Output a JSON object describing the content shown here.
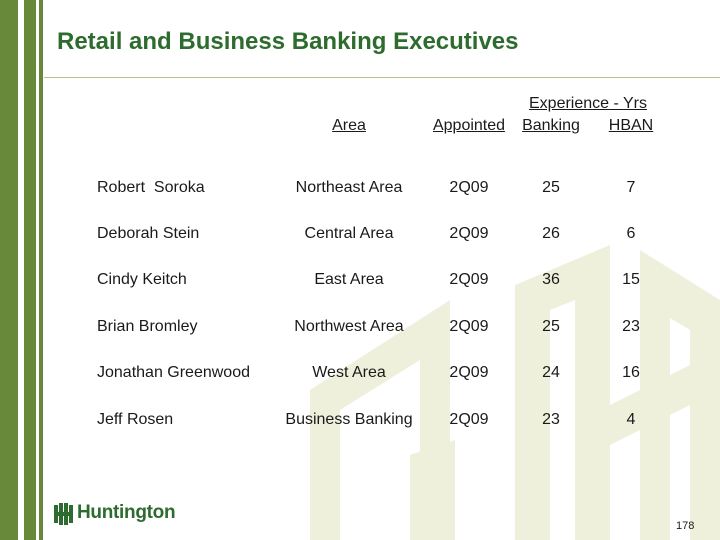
{
  "slide": {
    "title": "Retail and Business Banking Executives",
    "page_number": "178",
    "logo_text": "Huntington"
  },
  "table": {
    "group_header": "Experience - Yrs",
    "headers": {
      "area": "Area",
      "appointed": "Appointed",
      "banking": "Banking",
      "hban": "HBAN"
    },
    "rows": [
      {
        "name": "Robert  Soroka",
        "area": "Northeast Area",
        "appointed": "2Q09",
        "banking": "25",
        "hban": "7"
      },
      {
        "name": "Deborah Stein",
        "area": "Central Area",
        "appointed": "2Q09",
        "banking": "26",
        "hban": "6"
      },
      {
        "name": "Cindy Keitch",
        "area": "East Area",
        "appointed": "2Q09",
        "banking": "36",
        "hban": "15"
      },
      {
        "name": "Brian Bromley",
        "area": "Northwest Area",
        "appointed": "2Q09",
        "banking": "25",
        "hban": "23"
      },
      {
        "name": "Jonathan Greenwood",
        "area": "West Area",
        "appointed": "2Q09",
        "banking": "24",
        "hban": "16"
      },
      {
        "name": "Jeff Rosen",
        "area": "Business Banking",
        "appointed": "2Q09",
        "banking": "23",
        "hban": "4"
      }
    ]
  },
  "colors": {
    "brand_green": "#2e6b2e",
    "stripe_green": "#68883a",
    "watermark": "#eef0dc"
  },
  "icons": [
    "huntington-logo-icon"
  ]
}
